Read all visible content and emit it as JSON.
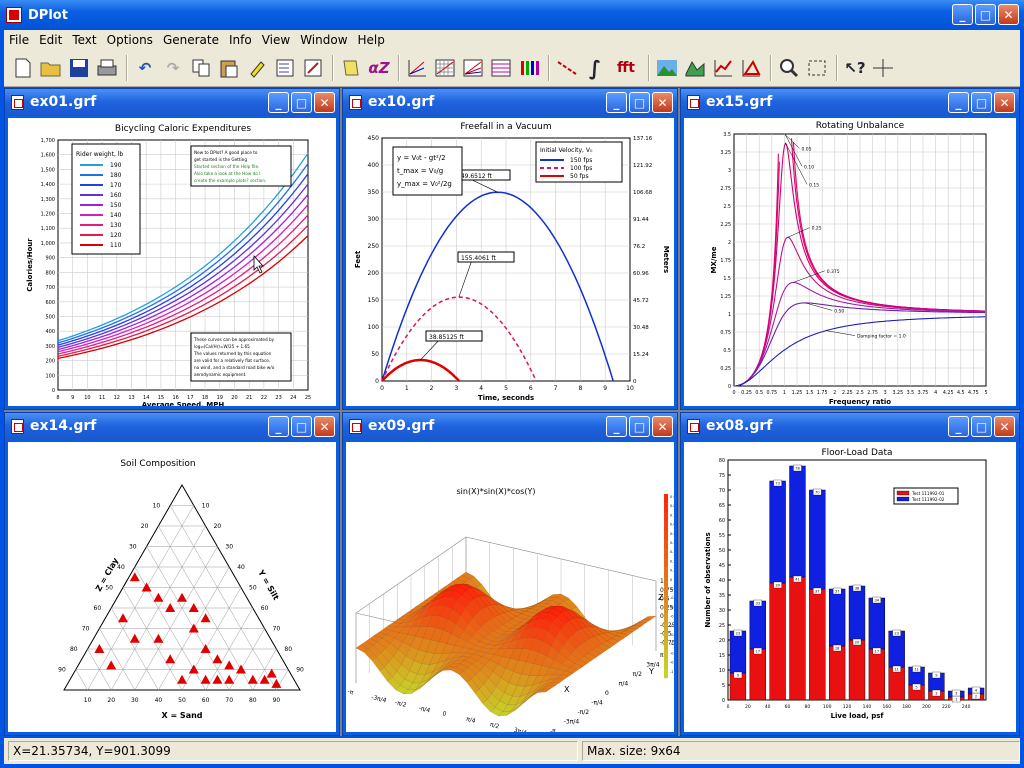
{
  "app": {
    "title": "DPlot"
  },
  "menu": [
    "File",
    "Edit",
    "Text",
    "Options",
    "Generate",
    "Info",
    "View",
    "Window",
    "Help"
  ],
  "toolbar_icons": [
    "new-icon",
    "open-icon",
    "save-icon",
    "print-icon",
    "undo-icon",
    "redo-icon",
    "copy-icon",
    "paste-icon",
    "highlighter-icon",
    "checklist-icon",
    "edit-list-icon",
    "note-icon",
    "alpha-z-icon",
    "axes-icon",
    "grid-icon",
    "grid2-icon",
    "grid3-icon",
    "crayons-icon",
    "line-icon",
    "integral-icon",
    "fft-icon",
    "landscape-icon",
    "surface-icon",
    "curve-icon",
    "triangle-icon",
    "zoom-icon",
    "fit-icon",
    "help-cursor-icon",
    "crosshair-icon"
  ],
  "toolbar_text": {
    "integral": "∫",
    "fft": "fft",
    "alphaz": "αZ"
  },
  "windows": [
    {
      "title": "ex01.grf"
    },
    {
      "title": "ex10.grf"
    },
    {
      "title": "ex15.grf"
    },
    {
      "title": "ex14.grf"
    },
    {
      "title": "ex09.grf"
    },
    {
      "title": "ex08.grf"
    }
  ],
  "status": {
    "coords": "X=21.35734, Y=901.3099",
    "size": "Max. size: 9x64"
  },
  "colors": {
    "title_blue": "#0a5ee0",
    "plot_red": "#e00000",
    "plot_blue": "#0000d0",
    "magenta": "#d000a0"
  },
  "chart_data": [
    {
      "type": "line",
      "title": "Bicycling Caloric Expenditures",
      "xlabel": "Average Speed, MPH",
      "ylabel": "Calories/Hour",
      "xlim": [
        8,
        25
      ],
      "ylim": [
        0,
        1700
      ],
      "x_ticks": [
        "8",
        "9",
        "10",
        "11",
        "12",
        "13",
        "14",
        "15",
        "16",
        "17",
        "18",
        "19",
        "20",
        "21",
        "22",
        "23",
        "24",
        "25"
      ],
      "y_ticks": [
        "0",
        "100",
        "200",
        "300",
        "400",
        "500",
        "600",
        "700",
        "800",
        "900",
        "1,000",
        "1,100",
        "1,200",
        "1,300",
        "1,400",
        "1,500",
        "1,600",
        "1,700"
      ],
      "legend_title": "Rider weight, lb",
      "series": [
        {
          "name": "190",
          "values_at_8_25": [
            335,
            1610
          ]
        },
        {
          "name": "180",
          "values_at_8_25": [
            320,
            1540
          ]
        },
        {
          "name": "170",
          "values_at_8_25": [
            305,
            1470
          ]
        },
        {
          "name": "160",
          "values_at_8_25": [
            290,
            1400
          ]
        },
        {
          "name": "150",
          "values_at_8_25": [
            275,
            1330
          ]
        },
        {
          "name": "140",
          "values_at_8_25": [
            260,
            1260
          ]
        },
        {
          "name": "130",
          "values_at_8_25": [
            245,
            1190
          ]
        },
        {
          "name": "120",
          "values_at_8_25": [
            230,
            1120
          ]
        },
        {
          "name": "110",
          "values_at_8_25": [
            215,
            1050
          ]
        }
      ],
      "annotation_top": [
        "New to DPlot? A good place to",
        "get started is the Getting",
        "Started section of the Help file.",
        "Also take a look at the How do I",
        "create the example plots? section."
      ],
      "annotation_bottom": [
        "These curves can be approximated by",
        "log₁₀(Cal/Hr)=W/25 + 1.65",
        "The values returned by this equation",
        "are valid for a relatively flat surface,",
        "no wind, and a standard road bike w/o",
        "aerodynamic equipment."
      ]
    },
    {
      "type": "line",
      "title": "Freefall in a Vacuum",
      "xlabel": "Time, seconds",
      "ylabel": "Feet",
      "ylabel_right": "Meters",
      "xlim": [
        0,
        10
      ],
      "ylim": [
        0,
        450
      ],
      "x_ticks": [
        "0",
        "1",
        "2",
        "3",
        "4",
        "5",
        "6",
        "7",
        "8",
        "9",
        "10"
      ],
      "y_ticks": [
        "0",
        "50",
        "100",
        "150",
        "200",
        "250",
        "300",
        "350",
        "400",
        "450"
      ],
      "y2_ticks": [
        "0",
        "15.24",
        "30.48",
        "45.72",
        "60.96",
        "76.2",
        "91.44",
        "106.68",
        "121.92",
        "137.16"
      ],
      "legend_title": "Initial Velocity, V₀",
      "series": [
        {
          "name": "150 fps",
          "v0": 150
        },
        {
          "name": "100 fps",
          "v0": 100
        },
        {
          "name": "50 fps",
          "v0": 50
        }
      ],
      "labels": [
        "349.6512 ft",
        "155.4061 ft",
        "38.85125 ft"
      ],
      "equations": [
        "y = V₀t - gt²/2",
        "t_max = V₀/g",
        "y_max = V₀²/2g"
      ]
    },
    {
      "type": "line",
      "title": "Rotating Unbalance",
      "xlabel": "Frequency ratio",
      "ylabel": "MX/me",
      "xlim": [
        0,
        5
      ],
      "ylim": [
        0,
        3.5
      ],
      "x_ticks": [
        "0",
        "0.25",
        "0.5",
        "0.75",
        "1",
        "1.25",
        "1.5",
        "1.75",
        "2",
        "2.25",
        "2.5",
        "2.75",
        "3",
        "3.25",
        "3.5",
        "3.75",
        "4",
        "4.25",
        "4.5",
        "4.75",
        "5"
      ],
      "y_ticks": [
        "0",
        "0.25",
        "0.5",
        "0.75",
        "1",
        "1.25",
        "1.5",
        "1.75",
        "2",
        "2.25",
        "2.5",
        "2.75",
        "3",
        "3.25",
        "3.5"
      ],
      "damping": [
        0.05,
        0.1,
        0.15,
        0.25,
        0.375,
        0.5,
        1.0
      ],
      "damping_labels": [
        "0.05",
        "0.10",
        "0.15",
        "0.25",
        "0.375",
        "0.50",
        "Damping factor = 1.0"
      ]
    },
    {
      "type": "scatter",
      "title": "Soil Composition",
      "axis_labels": [
        "X = Sand",
        "Y = Silt",
        "Z = Clay"
      ],
      "ticks": [
        "10",
        "20",
        "30",
        "40",
        "50",
        "60",
        "70",
        "80",
        "90"
      ],
      "points": [
        [
          20,
          12
        ],
        [
          15,
          20
        ],
        [
          30,
          25
        ],
        [
          25,
          35
        ],
        [
          40,
          25
        ],
        [
          45,
          15
        ],
        [
          55,
          10
        ],
        [
          60,
          20
        ],
        [
          55,
          30
        ],
        [
          65,
          15
        ],
        [
          70,
          12
        ],
        [
          75,
          10
        ],
        [
          80,
          5
        ],
        [
          85,
          5
        ],
        [
          88,
          8
        ],
        [
          90,
          3
        ],
        [
          70,
          5
        ],
        [
          65,
          5
        ],
        [
          60,
          5
        ],
        [
          50,
          5
        ],
        [
          45,
          40
        ],
        [
          40,
          45
        ],
        [
          35,
          50
        ],
        [
          30,
          55
        ],
        [
          50,
          45
        ],
        [
          55,
          40
        ],
        [
          60,
          35
        ]
      ]
    },
    {
      "type": "heatmap",
      "title": "sin(X)*sin(X)*cos(Y)",
      "x_ticks": [
        "-π",
        "-3π/4",
        "-π/2",
        "-π/4",
        "0",
        "π/4",
        "π/2",
        "3π/4",
        "π"
      ],
      "y_ticks": [
        "-π",
        "-3π/4",
        "-π/2",
        "-π/4",
        "0",
        "π/4",
        "π/2",
        "3π/4",
        "π"
      ],
      "z_ticks": [
        "1",
        "0.75",
        "0.5",
        "0.25",
        "0",
        "-0.25",
        "-0.5",
        "-0.75"
      ],
      "colorbar_ticks": [
        "0.9",
        "0.8",
        "0.7",
        "0.6",
        "0.5",
        "0.4",
        "0.3",
        "0.2",
        "0.1",
        "0",
        "-0.1",
        "-0.2",
        "-0.3",
        "-0.4",
        "-0.5",
        "-0.6",
        "-0.7",
        "-0.8",
        "-0.9",
        "-1"
      ],
      "axis_labels": {
        "x": "X",
        "y": "Y",
        "z": "Z"
      }
    },
    {
      "type": "bar",
      "title": "Floor-Load Data",
      "xlabel": "Live load, psf",
      "ylabel": "Number of observations",
      "ylim": [
        0,
        80
      ],
      "categories": [
        "10",
        "30",
        "50",
        "70",
        "90",
        "110",
        "130",
        "150",
        "170",
        "190",
        "210",
        "230",
        "250"
      ],
      "series": [
        {
          "name": "Test 111992-01",
          "values": [
            9,
            17,
            39,
            41,
            37,
            18,
            20,
            17,
            11,
            5,
            3,
            1,
            2
          ]
        },
        {
          "name": "Test 111992-02",
          "values": [
            14,
            16,
            34,
            37,
            33,
            19,
            18,
            17,
            12,
            6,
            6,
            2,
            2
          ]
        }
      ],
      "x_ticks": [
        "0",
        "20",
        "40",
        "60",
        "80",
        "100",
        "120",
        "140",
        "160",
        "180",
        "200",
        "220",
        "240"
      ],
      "y_ticks": [
        "0",
        "5",
        "10",
        "15",
        "20",
        "25",
        "30",
        "35",
        "40",
        "45",
        "50",
        "55",
        "60",
        "65",
        "70",
        "75",
        "80"
      ]
    }
  ]
}
